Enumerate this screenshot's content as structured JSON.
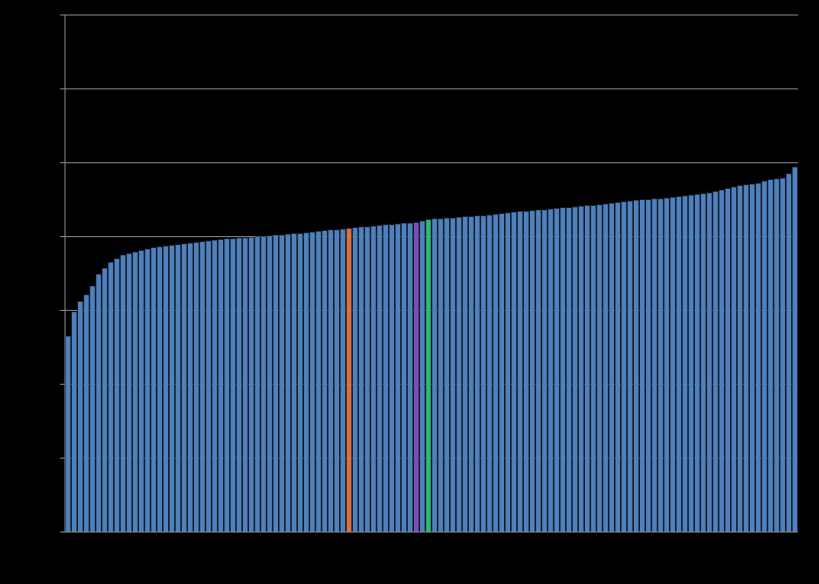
{
  "chart_data": {
    "type": "bar",
    "values": [
      26.5,
      29.8,
      31.2,
      32.1,
      33.3,
      34.9,
      35.7,
      36.5,
      37.0,
      37.5,
      37.7,
      37.9,
      38.1,
      38.3,
      38.5,
      38.6,
      38.7,
      38.8,
      38.9,
      39.0,
      39.1,
      39.2,
      39.3,
      39.4,
      39.5,
      39.6,
      39.7,
      39.7,
      39.8,
      39.8,
      39.9,
      40.0,
      40.0,
      40.1,
      40.2,
      40.2,
      40.3,
      40.4,
      40.4,
      40.5,
      40.6,
      40.7,
      40.8,
      40.9,
      40.9,
      41.0,
      41.1,
      41.2,
      41.3,
      41.3,
      41.4,
      41.5,
      41.6,
      41.6,
      41.7,
      41.8,
      41.8,
      41.9,
      42.1,
      42.3,
      42.4,
      42.4,
      42.5,
      42.5,
      42.6,
      42.7,
      42.7,
      42.8,
      42.8,
      42.9,
      43.0,
      43.1,
      43.2,
      43.3,
      43.4,
      43.4,
      43.5,
      43.6,
      43.6,
      43.7,
      43.8,
      43.9,
      43.9,
      44.0,
      44.1,
      44.2,
      44.2,
      44.3,
      44.4,
      44.5,
      44.6,
      44.7,
      44.8,
      44.9,
      45.0,
      45.0,
      45.1,
      45.1,
      45.2,
      45.3,
      45.4,
      45.5,
      45.6,
      45.7,
      45.8,
      45.9,
      46.1,
      46.3,
      46.5,
      46.7,
      46.9,
      47.0,
      47.1,
      47.2,
      47.5,
      47.7,
      47.8,
      47.9,
      48.5,
      49.4
    ],
    "color": "#4f81bd",
    "highlights": [
      {
        "index": 46,
        "color": "#e0703a"
      },
      {
        "index": 57,
        "color": "#7a4fbd"
      },
      {
        "index": 59,
        "color": "#2fb87a"
      }
    ],
    "ylim": [
      0,
      70
    ],
    "yticks": [
      0,
      10,
      20,
      30,
      40,
      50,
      60,
      70
    ],
    "grid": true
  }
}
